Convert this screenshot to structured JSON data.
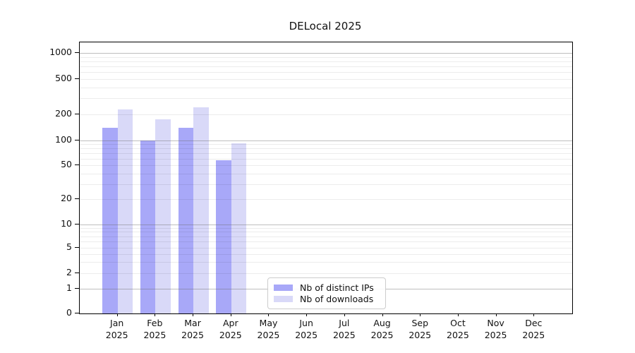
{
  "chart_data": {
    "type": "bar",
    "title": "DELocal 2025",
    "categories": [
      "Jan 2025",
      "Feb 2025",
      "Mar 2025",
      "Apr 2025",
      "May 2025",
      "Jun 2025",
      "Jul 2025",
      "Aug 2025",
      "Sep 2025",
      "Oct 2025",
      "Nov 2025",
      "Dec 2025"
    ],
    "month_labels": [
      "Jan",
      "Feb",
      "Mar",
      "Apr",
      "May",
      "Jun",
      "Jul",
      "Aug",
      "Sep",
      "Oct",
      "Nov",
      "Dec"
    ],
    "year_label": "2025",
    "series": [
      {
        "name": "Nb of distinct IPs",
        "color": "#a8a8f8",
        "values": [
          140,
          100,
          140,
          58,
          0,
          0,
          0,
          0,
          0,
          0,
          0,
          0
        ]
      },
      {
        "name": "Nb of downloads",
        "color": "#d9d9f8",
        "values": [
          225,
          173,
          240,
          92,
          0,
          0,
          0,
          0,
          0,
          0,
          0,
          0
        ]
      }
    ],
    "y_axis": {
      "scale": "log (0 baseline)",
      "tick_values": [
        0,
        1,
        2,
        5,
        10,
        20,
        50,
        100,
        200,
        500,
        1000
      ],
      "range": [
        0,
        1000
      ]
    },
    "grid": "minor log gridlines light gray, decade gridlines darker gray",
    "legend_position": "bottom-center-inside",
    "colors": {
      "bar_distinct_ips": "#a8a8f8",
      "bar_downloads": "#d9d9f8",
      "major_grid": "#b0b0b0",
      "minor_grid": "#ebebeb",
      "axis": "#000000",
      "legend_border": "#cccccc"
    }
  }
}
